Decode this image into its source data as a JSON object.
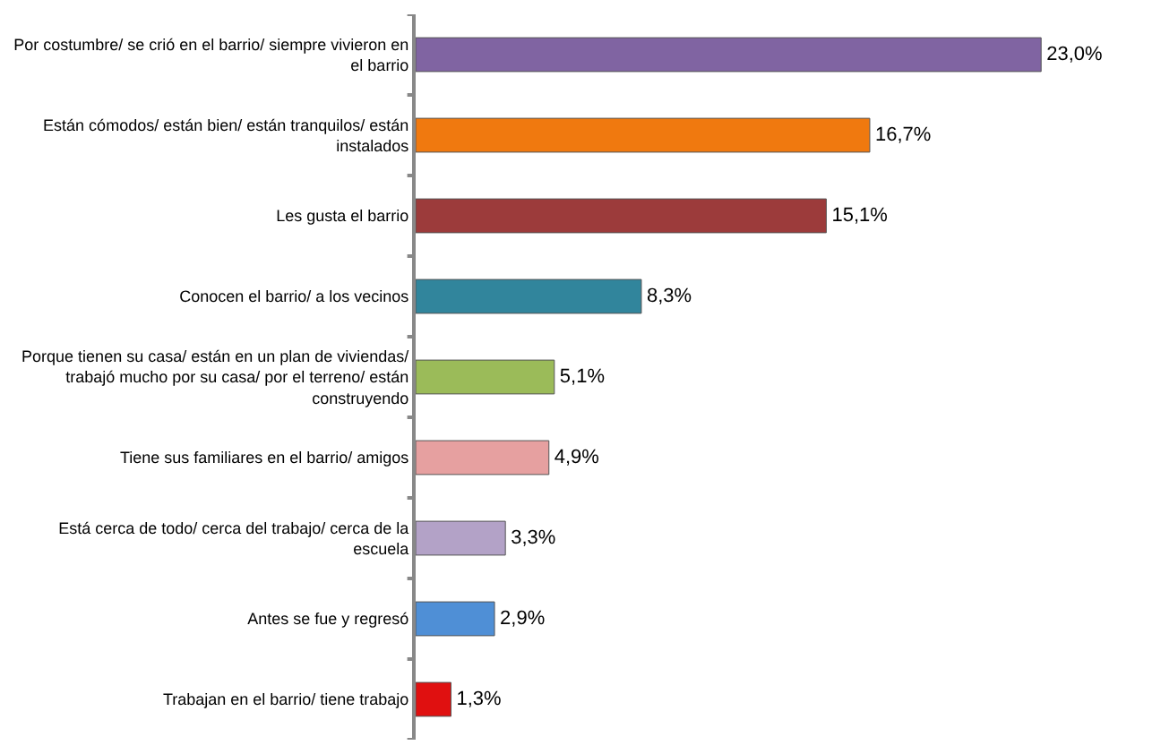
{
  "chart_data": {
    "type": "bar",
    "orientation": "horizontal",
    "categories": [
      "Por costumbre/ se crió en el barrio/ siempre vivieron en el barrio",
      "Están cómodos/ están bien/ están tranquilos/ están instalados",
      "Les gusta el barrio",
      "Conocen el barrio/ a los vecinos",
      "Porque tienen su casa/ están en un plan de viviendas/ trabajó mucho por su casa/ por el terreno/ están construyendo",
      "Tiene sus familiares en el barrio/ amigos",
      "Está cerca de todo/ cerca del trabajo/ cerca de la escuela",
      "Antes se fue y regresó",
      "Trabajan en el barrio/ tiene trabajo"
    ],
    "values": [
      23.0,
      16.7,
      15.1,
      8.3,
      5.1,
      4.9,
      3.3,
      2.9,
      1.3
    ],
    "colors": [
      "#8064a2",
      "#f0790f",
      "#9c3b3b",
      "#31859c",
      "#9bbb59",
      "#e6a0a0",
      "#b3a2c7",
      "#4f8fd6",
      "#e01010"
    ],
    "value_labels": [
      "23,0%",
      "16,7%",
      "15,1%",
      "8,3%",
      "5,1%",
      "4,9%",
      "3,3%",
      "2,9%",
      "1,3%"
    ],
    "tick_labels": "y"
  }
}
